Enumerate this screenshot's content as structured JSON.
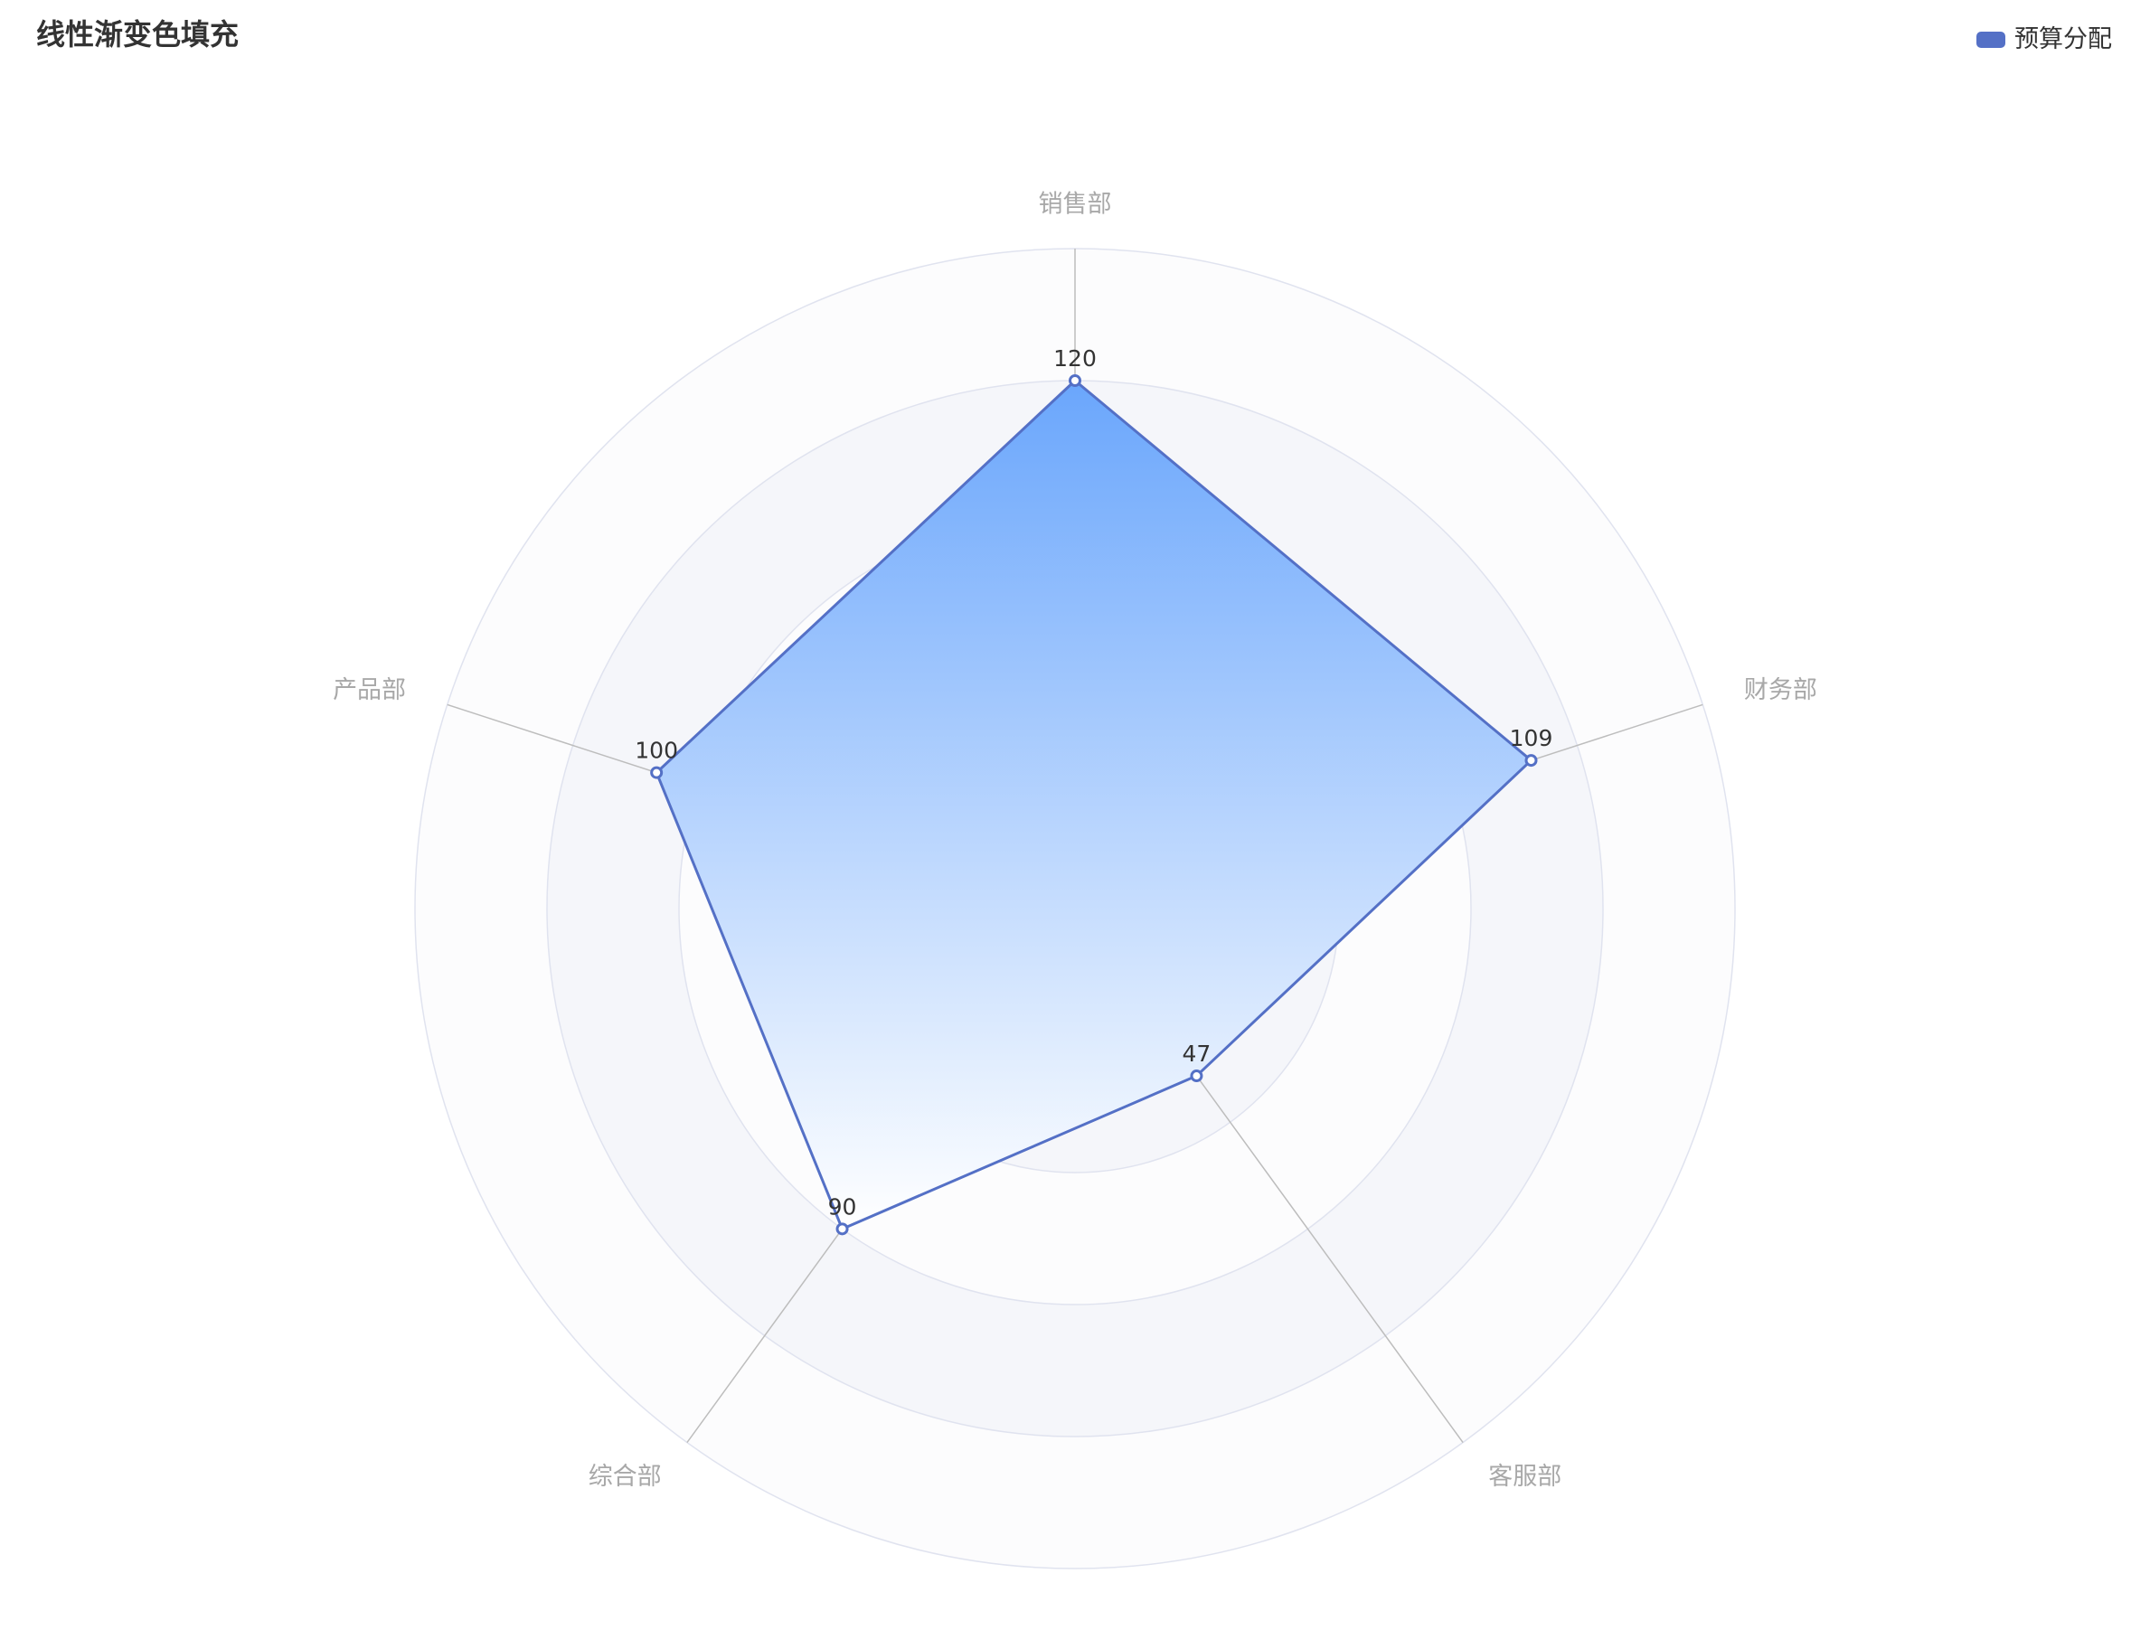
{
  "colors": {
    "series": "#5470c6",
    "area_top": "#6aa6fc",
    "area_bottom": "#ffffff",
    "axis_line": "#bdbdbd",
    "split_line": "#e0e3ef",
    "split_area_light": "#fcfcfd",
    "split_area_dark": "#f5f6fa",
    "axis_name": "#a8a8a8",
    "title": "#333333"
  },
  "chart_data": {
    "type": "radar",
    "title": "线性渐变色填充",
    "legend": {
      "position": "top-right",
      "items": [
        "预算分配"
      ]
    },
    "max": 150,
    "split_number": 5,
    "indicators": [
      "销售部",
      "财务部",
      "客服部",
      "综合部",
      "产品部"
    ],
    "series": [
      {
        "name": "预算分配",
        "values": [
          120,
          109,
          47,
          90,
          100
        ],
        "labels_shown": true
      }
    ]
  }
}
